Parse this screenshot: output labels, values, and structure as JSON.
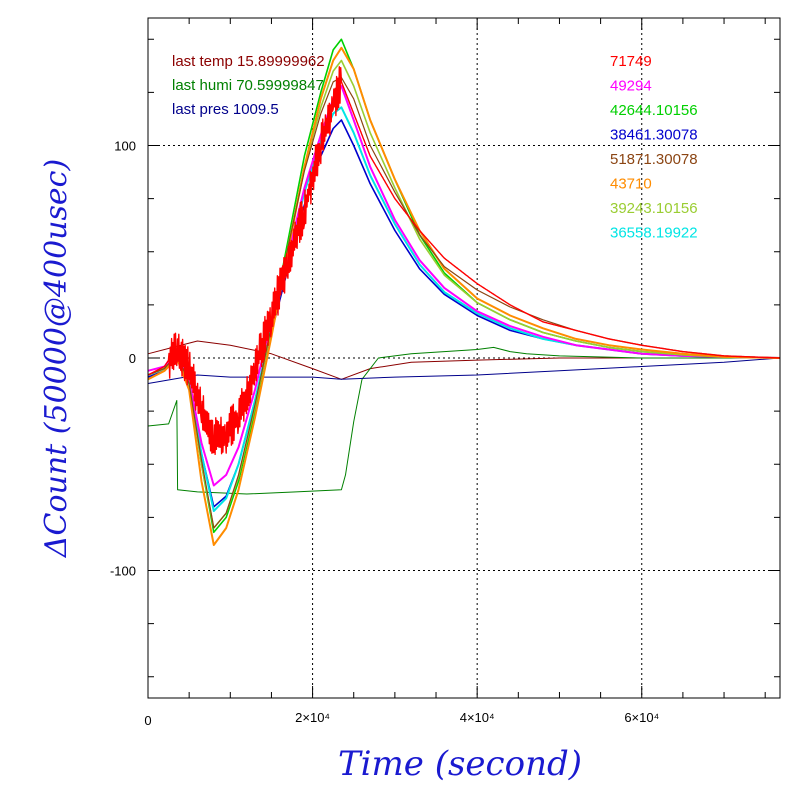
{
  "chart_data": {
    "type": "line",
    "xlabel": "Time (second)",
    "ylabel": "ΔCount (50000@400usec)",
    "xlim": [
      0,
      76800
    ],
    "ylim": [
      -160,
      160
    ],
    "grid": true,
    "x_tick_values": [
      20000,
      40000,
      60000
    ],
    "x_tick_labels": [
      "2×10⁴",
      "4×10⁴",
      "6×10⁴"
    ],
    "x_origin_label": "0",
    "y_ticks": [
      100,
      0,
      -100
    ],
    "y_tick_labels": [
      "100",
      "0",
      "-100"
    ],
    "info_labels": [
      {
        "text": "last temp 15.89999962",
        "color": "#8b0000"
      },
      {
        "text": "last humi 70.59999847",
        "color": "#008000"
      },
      {
        "text": "last pres 1009.5",
        "color": "#00008b"
      }
    ],
    "series": [
      {
        "name": "71749",
        "color": "#ff0000",
        "width": 1.4,
        "noise": 7,
        "points": [
          [
            0,
            -8
          ],
          [
            2000,
            -4
          ],
          [
            3500,
            5
          ],
          [
            5000,
            -5
          ],
          [
            6500,
            -25
          ],
          [
            8000,
            -38
          ],
          [
            9500,
            -35
          ],
          [
            11000,
            -28
          ],
          [
            13000,
            -5
          ],
          [
            15000,
            20
          ],
          [
            17000,
            45
          ],
          [
            19000,
            70
          ],
          [
            21000,
            100
          ],
          [
            22500,
            120
          ],
          [
            23500,
            130
          ],
          [
            25000,
            115
          ],
          [
            27000,
            95
          ],
          [
            30000,
            75
          ],
          [
            33000,
            60
          ],
          [
            36000,
            47
          ],
          [
            40000,
            35
          ],
          [
            44000,
            25
          ],
          [
            48000,
            17
          ],
          [
            52000,
            13
          ],
          [
            56000,
            9
          ],
          [
            60000,
            6
          ],
          [
            65000,
            3
          ],
          [
            70000,
            1
          ],
          [
            76800,
            0
          ]
        ]
      },
      {
        "name": "49294",
        "color": "#ff00ff",
        "width": 2,
        "points": [
          [
            0,
            -6
          ],
          [
            2000,
            -4
          ],
          [
            3500,
            4
          ],
          [
            5000,
            -10
          ],
          [
            6500,
            -40
          ],
          [
            8000,
            -60
          ],
          [
            9500,
            -55
          ],
          [
            11000,
            -42
          ],
          [
            13000,
            -15
          ],
          [
            15000,
            18
          ],
          [
            17000,
            48
          ],
          [
            19000,
            80
          ],
          [
            21000,
            105
          ],
          [
            22500,
            122
          ],
          [
            23500,
            128
          ],
          [
            25000,
            112
          ],
          [
            27000,
            90
          ],
          [
            30000,
            65
          ],
          [
            33000,
            46
          ],
          [
            36000,
            33
          ],
          [
            40000,
            22
          ],
          [
            44000,
            15
          ],
          [
            48000,
            10
          ],
          [
            52000,
            6
          ],
          [
            56000,
            4
          ],
          [
            60000,
            2
          ],
          [
            65000,
            1
          ],
          [
            70000,
            0.5
          ],
          [
            76800,
            0
          ]
        ]
      },
      {
        "name": "42644.10156",
        "color": "#00d000",
        "width": 1.6,
        "points": [
          [
            0,
            -8
          ],
          [
            2000,
            -5
          ],
          [
            3500,
            1
          ],
          [
            5000,
            -12
          ],
          [
            6500,
            -50
          ],
          [
            8000,
            -82
          ],
          [
            9500,
            -75
          ],
          [
            11000,
            -58
          ],
          [
            13000,
            -25
          ],
          [
            15000,
            15
          ],
          [
            17000,
            55
          ],
          [
            19000,
            95
          ],
          [
            21000,
            125
          ],
          [
            22500,
            145
          ],
          [
            23500,
            150
          ],
          [
            25000,
            136
          ],
          [
            27000,
            112
          ],
          [
            30000,
            84
          ],
          [
            33000,
            58
          ],
          [
            36000,
            40
          ],
          [
            40000,
            26
          ],
          [
            44000,
            18
          ],
          [
            48000,
            12
          ],
          [
            52000,
            8
          ],
          [
            56000,
            5
          ],
          [
            60000,
            3
          ],
          [
            65000,
            1.5
          ],
          [
            70000,
            0.5
          ],
          [
            76800,
            0
          ]
        ]
      },
      {
        "name": "38461.30078",
        "color": "#0000cd",
        "width": 1.6,
        "points": [
          [
            0,
            -9
          ],
          [
            2000,
            -6
          ],
          [
            3500,
            0
          ],
          [
            5000,
            -12
          ],
          [
            6500,
            -45
          ],
          [
            8000,
            -70
          ],
          [
            9500,
            -65
          ],
          [
            11000,
            -50
          ],
          [
            13000,
            -20
          ],
          [
            15000,
            12
          ],
          [
            17000,
            42
          ],
          [
            19000,
            72
          ],
          [
            21000,
            95
          ],
          [
            22500,
            108
          ],
          [
            23500,
            112
          ],
          [
            25000,
            100
          ],
          [
            27000,
            82
          ],
          [
            30000,
            60
          ],
          [
            33000,
            42
          ],
          [
            36000,
            30
          ],
          [
            40000,
            20
          ],
          [
            44000,
            13
          ],
          [
            48000,
            9
          ],
          [
            52000,
            6
          ],
          [
            56000,
            4
          ],
          [
            60000,
            2
          ],
          [
            65000,
            1
          ],
          [
            70000,
            0.5
          ],
          [
            76800,
            0
          ]
        ]
      },
      {
        "name": "51871.30078",
        "color": "#8b4513",
        "width": 1.2,
        "points": [
          [
            0,
            -8
          ],
          [
            2000,
            -5
          ],
          [
            3500,
            2
          ],
          [
            5000,
            -12
          ],
          [
            6500,
            -48
          ],
          [
            8000,
            -80
          ],
          [
            9500,
            -73
          ],
          [
            11000,
            -55
          ],
          [
            13000,
            -22
          ],
          [
            15000,
            15
          ],
          [
            17000,
            52
          ],
          [
            19000,
            88
          ],
          [
            21000,
            115
          ],
          [
            22500,
            130
          ],
          [
            23500,
            132
          ],
          [
            25000,
            122
          ],
          [
            27000,
            100
          ],
          [
            30000,
            78
          ],
          [
            33000,
            58
          ],
          [
            36000,
            43
          ],
          [
            40000,
            32
          ],
          [
            44000,
            24
          ],
          [
            48000,
            18
          ],
          [
            52000,
            13
          ],
          [
            56000,
            9
          ],
          [
            60000,
            6
          ],
          [
            65000,
            3
          ],
          [
            70000,
            1
          ],
          [
            76800,
            0
          ]
        ]
      },
      {
        "name": "43710",
        "color": "#ff8c00",
        "width": 2,
        "points": [
          [
            0,
            -10
          ],
          [
            2000,
            -6
          ],
          [
            3500,
            0
          ],
          [
            5000,
            -15
          ],
          [
            6500,
            -58
          ],
          [
            8000,
            -88
          ],
          [
            9500,
            -80
          ],
          [
            11000,
            -62
          ],
          [
            13000,
            -28
          ],
          [
            15000,
            10
          ],
          [
            17000,
            50
          ],
          [
            19000,
            90
          ],
          [
            21000,
            122
          ],
          [
            22500,
            140
          ],
          [
            23500,
            146
          ],
          [
            25000,
            136
          ],
          [
            27000,
            112
          ],
          [
            30000,
            84
          ],
          [
            33000,
            60
          ],
          [
            36000,
            42
          ],
          [
            40000,
            28
          ],
          [
            44000,
            20
          ],
          [
            48000,
            14
          ],
          [
            52000,
            9
          ],
          [
            56000,
            6
          ],
          [
            60000,
            4
          ],
          [
            65000,
            2
          ],
          [
            70000,
            0.5
          ],
          [
            76800,
            0
          ]
        ]
      },
      {
        "name": "39243.10156",
        "color": "#9acd32",
        "width": 1.6,
        "points": [
          [
            0,
            -8
          ],
          [
            2000,
            -5
          ],
          [
            3500,
            1
          ],
          [
            5000,
            -12
          ],
          [
            6500,
            -50
          ],
          [
            8000,
            -80
          ],
          [
            9500,
            -73
          ],
          [
            11000,
            -56
          ],
          [
            13000,
            -23
          ],
          [
            15000,
            14
          ],
          [
            17000,
            52
          ],
          [
            19000,
            90
          ],
          [
            21000,
            118
          ],
          [
            22500,
            135
          ],
          [
            23500,
            140
          ],
          [
            25000,
            128
          ],
          [
            27000,
            106
          ],
          [
            30000,
            80
          ],
          [
            33000,
            56
          ],
          [
            36000,
            39
          ],
          [
            40000,
            26
          ],
          [
            44000,
            18
          ],
          [
            48000,
            12
          ],
          [
            52000,
            8
          ],
          [
            56000,
            5
          ],
          [
            60000,
            3
          ],
          [
            65000,
            1.5
          ],
          [
            70000,
            0.5
          ],
          [
            76800,
            0
          ]
        ]
      },
      {
        "name": "36558.19922",
        "color": "#00e5e5",
        "width": 2,
        "points": [
          [
            0,
            -8
          ],
          [
            2000,
            -5
          ],
          [
            3500,
            1
          ],
          [
            5000,
            -12
          ],
          [
            6500,
            -45
          ],
          [
            8000,
            -72
          ],
          [
            9500,
            -66
          ],
          [
            11000,
            -50
          ],
          [
            13000,
            -20
          ],
          [
            15000,
            14
          ],
          [
            17000,
            45
          ],
          [
            19000,
            78
          ],
          [
            21000,
            102
          ],
          [
            22500,
            115
          ],
          [
            23500,
            118
          ],
          [
            25000,
            106
          ],
          [
            27000,
            86
          ],
          [
            30000,
            63
          ],
          [
            33000,
            44
          ],
          [
            36000,
            31
          ],
          [
            40000,
            21
          ],
          [
            44000,
            14
          ],
          [
            48000,
            9
          ],
          [
            52000,
            6
          ],
          [
            56000,
            4
          ],
          [
            60000,
            2
          ],
          [
            65000,
            1
          ],
          [
            70000,
            0.5
          ],
          [
            76800,
            0
          ]
        ]
      },
      {
        "name": "last temp",
        "color": "#8b0000",
        "width": 1,
        "points": [
          [
            0,
            2
          ],
          [
            3000,
            5
          ],
          [
            6000,
            8
          ],
          [
            10000,
            6
          ],
          [
            15000,
            2
          ],
          [
            20000,
            -5
          ],
          [
            23500,
            -10
          ],
          [
            27000,
            -5
          ],
          [
            32000,
            -2
          ],
          [
            40000,
            -1
          ],
          [
            50000,
            0
          ],
          [
            60000,
            0
          ],
          [
            70000,
            0
          ],
          [
            76800,
            0
          ]
        ]
      },
      {
        "name": "last humi",
        "color": "#008000",
        "width": 1,
        "points": [
          [
            0,
            -32
          ],
          [
            2500,
            -31
          ],
          [
            3500,
            -20
          ],
          [
            3600,
            -62
          ],
          [
            6000,
            -63
          ],
          [
            12000,
            -64
          ],
          [
            18000,
            -63
          ],
          [
            23500,
            -62
          ],
          [
            24000,
            -55
          ],
          [
            25000,
            -30
          ],
          [
            26000,
            -10
          ],
          [
            28000,
            0
          ],
          [
            32000,
            2
          ],
          [
            36000,
            3
          ],
          [
            40000,
            4
          ],
          [
            42000,
            5
          ],
          [
            44000,
            3
          ],
          [
            46000,
            2
          ],
          [
            50000,
            1
          ],
          [
            60000,
            0
          ],
          [
            70000,
            0
          ],
          [
            76800,
            0
          ]
        ]
      },
      {
        "name": "last pres",
        "color": "#00008b",
        "width": 1,
        "points": [
          [
            0,
            -12
          ],
          [
            3000,
            -10
          ],
          [
            6000,
            -8
          ],
          [
            10000,
            -9
          ],
          [
            15000,
            -9
          ],
          [
            20000,
            -9
          ],
          [
            23500,
            -10
          ],
          [
            30000,
            -9
          ],
          [
            40000,
            -8
          ],
          [
            50000,
            -6
          ],
          [
            60000,
            -4
          ],
          [
            70000,
            -2
          ],
          [
            76800,
            0
          ]
        ]
      }
    ]
  }
}
